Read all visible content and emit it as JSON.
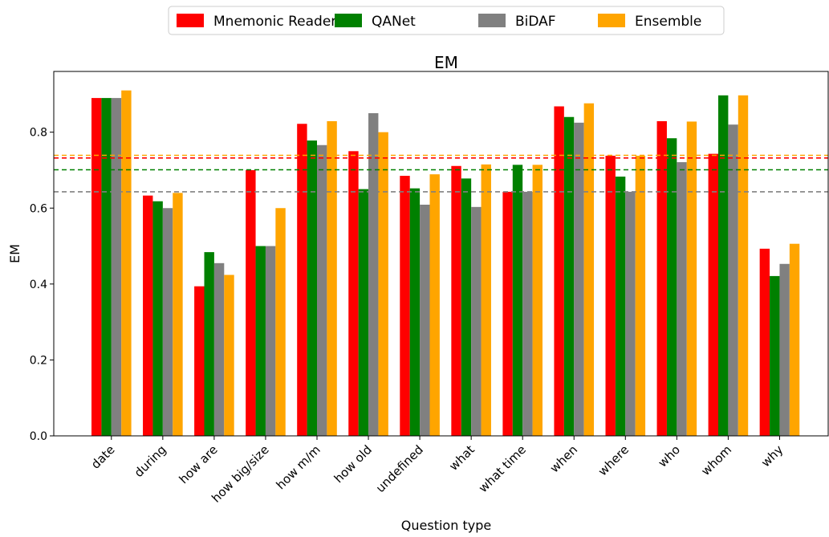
{
  "chart_data": {
    "type": "bar",
    "title": "EM",
    "xlabel": "Question type",
    "ylabel": "EM",
    "ylim": [
      0,
      0.96
    ],
    "yticks": [
      "0.0",
      "0.2",
      "0.4",
      "0.6",
      "0.8"
    ],
    "ytick_values": [
      0,
      0.2,
      0.4,
      0.6,
      0.8
    ],
    "legend_position": "top-center, outside plot",
    "grid": false,
    "categories": [
      "date",
      "during",
      "how are",
      "how big/size",
      "how m/m",
      "how old",
      "undefined",
      "what",
      "what time",
      "when",
      "where",
      "who",
      "whom",
      "why"
    ],
    "series": [
      {
        "name": "Mnemonic Reader",
        "color": "#ff0000",
        "values": [
          0.89,
          0.633,
          0.394,
          0.7,
          0.822,
          0.75,
          0.685,
          0.711,
          0.643,
          0.868,
          0.738,
          0.829,
          0.743,
          0.493
        ],
        "average": 0.732
      },
      {
        "name": "QANet",
        "color": "#008000",
        "values": [
          0.89,
          0.618,
          0.484,
          0.5,
          0.778,
          0.65,
          0.652,
          0.678,
          0.714,
          0.84,
          0.683,
          0.784,
          0.897,
          0.421
        ],
        "average": 0.701
      },
      {
        "name": "BiDAF",
        "color": "#808080",
        "values": [
          0.89,
          0.6,
          0.455,
          0.5,
          0.766,
          0.85,
          0.609,
          0.603,
          0.643,
          0.825,
          0.643,
          0.721,
          0.82,
          0.453
        ],
        "average": 0.643
      },
      {
        "name": "Ensemble",
        "color": "#ffa500",
        "values": [
          0.91,
          0.64,
          0.424,
          0.6,
          0.829,
          0.8,
          0.689,
          0.715,
          0.714,
          0.876,
          0.738,
          0.828,
          0.897,
          0.506
        ],
        "average": 0.739
      }
    ]
  }
}
